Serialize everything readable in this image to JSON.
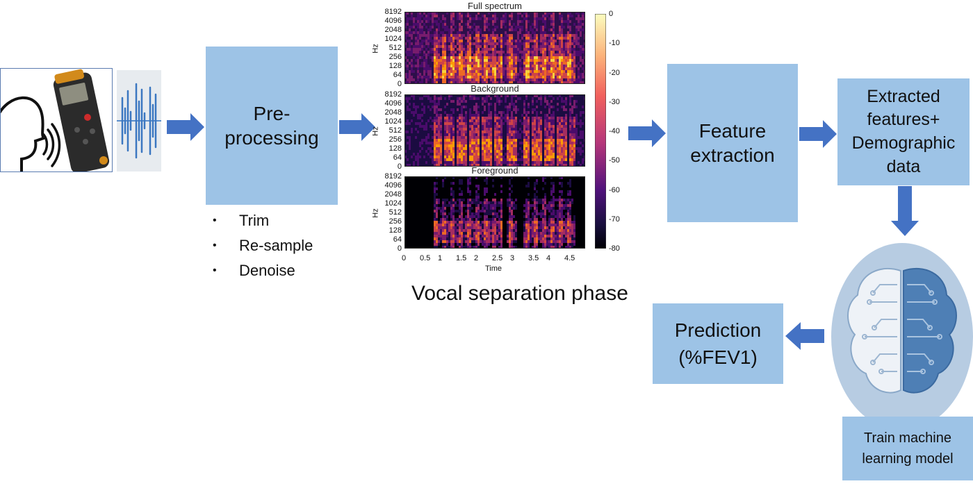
{
  "steps": {
    "preprocessing": [
      "Pre-",
      "processing"
    ],
    "feature_extraction": [
      "Feature",
      "extraction"
    ],
    "extracted": [
      "Extracted",
      "features+",
      "Demographic",
      "data"
    ],
    "prediction": [
      "Prediction",
      "(%FEV1)"
    ],
    "train": [
      "Train machine",
      "learning model"
    ]
  },
  "preprocessing_bullets": [
    "Trim",
    "Re-sample",
    "Denoise"
  ],
  "spectrograms": {
    "titles": [
      "Full spectrum",
      "Background",
      "Foreground"
    ],
    "y_ticks": [
      "8192",
      "4096",
      "2048",
      "1024",
      "512",
      "256",
      "128",
      "64",
      "0"
    ],
    "y_label": "Hz",
    "x_ticks": [
      "0",
      "0.5",
      "1",
      "1.5",
      "2",
      "2.5",
      "3",
      "3.5",
      "4",
      "4.5"
    ],
    "x_label": "Time",
    "colorbar_ticks": [
      "0",
      "-10",
      "-20",
      "-30",
      "-40",
      "-50",
      "-60",
      "-70",
      "-80"
    ]
  },
  "vocal_caption": "Vocal separation phase",
  "colors": {
    "box_fill": "#9dc3e6",
    "arrow_fill": "#4472c4",
    "brain_left": "#e8eef5",
    "brain_right": "#4e7fb5"
  }
}
